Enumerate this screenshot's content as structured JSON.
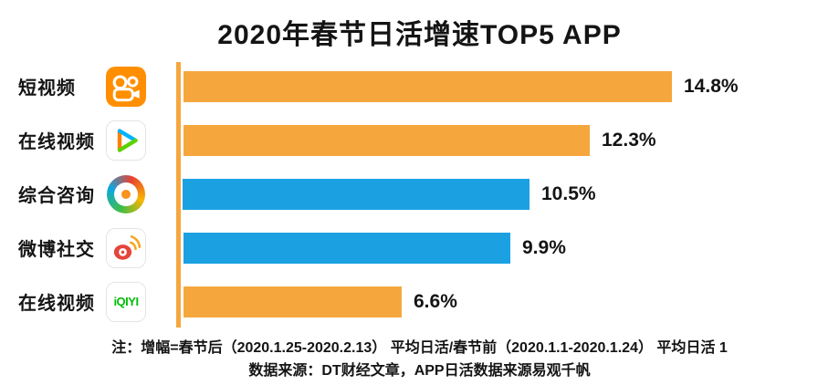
{
  "title": "2020年春节日活增速TOP5 APP",
  "chart_data": {
    "type": "bar",
    "orientation": "horizontal",
    "title": "2020年春节日活增速TOP5 APP",
    "categories": [
      "短视频",
      "在线视频",
      "综合咨询",
      "微博社交",
      "在线视频"
    ],
    "values": [
      14.8,
      12.3,
      10.5,
      9.9,
      6.6
    ],
    "value_labels": [
      "14.8%",
      "12.3%",
      "10.5%",
      "9.9%",
      "6.6%"
    ],
    "bar_colors": [
      "#F5A73E",
      "#F5A73E",
      "#1BA1E2",
      "#1BA1E2",
      "#F5A73E"
    ],
    "xlim": [
      0,
      16
    ],
    "grid": false,
    "legend": false,
    "icons": {
      "names": [
        "kuaishou-icon",
        "tencent-video-icon",
        "tencent-news-icon",
        "weibo-icon",
        "iqiyi-icon"
      ],
      "iqiyi_text": "iQIYI"
    },
    "accent_axis_color": "#F5A73E"
  },
  "notes": {
    "line1": "注：增幅=春节后（2020.1.25-2020.2.13） 平均日活/春节前（2020.1.1-2020.1.24） 平均日活 1",
    "line2": "数据来源：DT财经文章，APP日活数据来源易观千帆"
  }
}
